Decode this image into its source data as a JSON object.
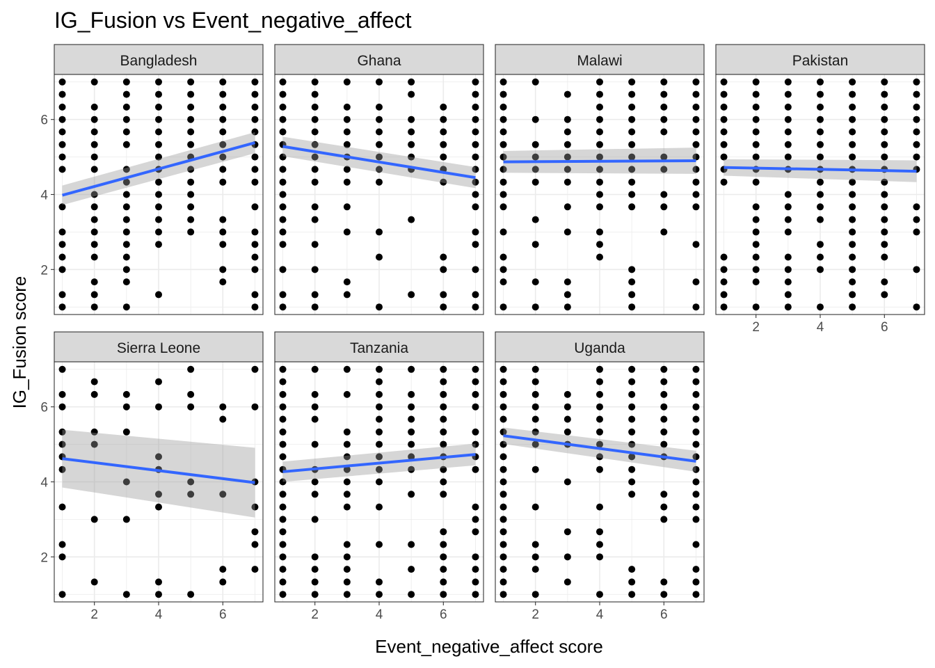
{
  "chart_data": {
    "type": "scatter",
    "title": "IG_Fusion vs Event_negative_affect",
    "xlabel": "Event_negative_affect score",
    "ylabel": "IG_Fusion score",
    "xlim": [
      0.75,
      7.25
    ],
    "ylim": [
      0.8,
      7.2
    ],
    "x_ticks": [
      2,
      4,
      6
    ],
    "y_ticks": [
      2,
      4,
      6
    ],
    "grid": true,
    "facet_layout": {
      "columns": 4,
      "rows": 2
    },
    "colors": {
      "points": "#000000",
      "fit_line": "#3366ff",
      "ci_band": "#999999",
      "strip_fill": "#d9d9d9",
      "grid": "#ebebeb"
    },
    "panels": [
      {
        "name": "Bangladesh",
        "fit": {
          "x": [
            1,
            7
          ],
          "y": [
            3.98,
            5.38
          ],
          "ci_low": [
            3.72,
            5.1
          ],
          "ci_high": [
            4.24,
            5.66
          ]
        },
        "columns": [
          {
            "x": 1,
            "y": [
              1,
              1.33,
              2,
              2.33,
              2.67,
              3,
              3.67,
              4.67,
              5,
              5.33,
              5.67,
              6,
              6.33,
              6.67,
              7
            ]
          },
          {
            "x": 2,
            "y": [
              1,
              1.33,
              1.67,
              2.33,
              2.67,
              3,
              3.33,
              3.67,
              4,
              4.67,
              5,
              5.33,
              5.67,
              6,
              6.33,
              7
            ]
          },
          {
            "x": 3,
            "y": [
              1,
              1.67,
              2,
              2.33,
              2.67,
              3,
              3.33,
              3.67,
              4,
              4.33,
              4.67,
              5.33,
              5.67,
              6,
              6.33,
              6.67,
              7
            ]
          },
          {
            "x": 4,
            "y": [
              1.33,
              2.67,
              3,
              3.33,
              3.67,
              4,
              4.33,
              4.67,
              5,
              5.33,
              5.67,
              6,
              6.33,
              6.67,
              7
            ]
          },
          {
            "x": 5,
            "y": [
              3,
              3.33,
              3.67,
              4,
              4.33,
              4.67,
              5,
              5.33,
              5.67,
              6,
              6.33,
              6.67,
              7
            ]
          },
          {
            "x": 6,
            "y": [
              1.67,
              2,
              2.67,
              3,
              3.33,
              4.33,
              4.67,
              5,
              5.33,
              5.67,
              6,
              6.33,
              6.67,
              7
            ]
          },
          {
            "x": 7,
            "y": [
              1,
              1.33,
              2,
              2.33,
              2.67,
              3,
              3.67,
              4.33,
              4.67,
              5,
              5.33,
              5.67,
              6,
              6.33,
              6.67,
              7
            ]
          }
        ]
      },
      {
        "name": "Ghana",
        "fit": {
          "x": [
            1,
            7
          ],
          "y": [
            5.28,
            4.45
          ],
          "ci_low": [
            5.02,
            4.17
          ],
          "ci_high": [
            5.54,
            4.73
          ]
        },
        "columns": [
          {
            "x": 1,
            "y": [
              1,
              1.33,
              2,
              2.67,
              3,
              3.33,
              3.67,
              4,
              4.33,
              4.67,
              5,
              5.33,
              5.67,
              6,
              6.33,
              6.67,
              7
            ]
          },
          {
            "x": 2,
            "y": [
              1,
              1.33,
              2,
              2.67,
              3.33,
              3.67,
              4.33,
              4.67,
              5,
              5.33,
              5.67,
              6,
              6.33,
              6.67,
              7
            ]
          },
          {
            "x": 3,
            "y": [
              1.33,
              1.67,
              3,
              3.67,
              4.33,
              4.67,
              5,
              5.33,
              5.67,
              6,
              6.33,
              7
            ]
          },
          {
            "x": 4,
            "y": [
              1,
              2.33,
              3,
              4.33,
              4.67,
              5,
              5.33,
              5.67,
              6,
              6.33,
              7
            ]
          },
          {
            "x": 5,
            "y": [
              1.33,
              3.33,
              4.67,
              5,
              5.33,
              5.67,
              6,
              6.67,
              7
            ]
          },
          {
            "x": 6,
            "y": [
              1,
              1.33,
              2,
              2.33,
              4.33,
              4.67,
              5,
              5.33,
              5.67,
              6,
              6.33
            ]
          },
          {
            "x": 7,
            "y": [
              1,
              1.33,
              2,
              2.67,
              3,
              3.67,
              4,
              4.33,
              4.67,
              5,
              5.33,
              5.67,
              6,
              6.33,
              6.67,
              7
            ]
          }
        ]
      },
      {
        "name": "Malawi",
        "fit": {
          "x": [
            1,
            7
          ],
          "y": [
            4.87,
            4.9
          ],
          "ci_low": [
            4.58,
            4.55
          ],
          "ci_high": [
            5.16,
            5.25
          ]
        },
        "columns": [
          {
            "x": 1,
            "y": [
              1,
              1.67,
              2,
              2.33,
              3,
              3.67,
              4,
              4.33,
              4.67,
              5,
              5.33,
              5.67,
              6,
              6.33,
              6.67,
              7
            ]
          },
          {
            "x": 2,
            "y": [
              1,
              1.67,
              2.67,
              3.33,
              4.33,
              4.67,
              5,
              5.33,
              6,
              7
            ]
          },
          {
            "x": 3,
            "y": [
              1,
              1.33,
              1.67,
              3,
              3.67,
              4.33,
              4.67,
              5,
              5.33,
              5.67,
              6,
              6.67
            ]
          },
          {
            "x": 4,
            "y": [
              2.33,
              2.67,
              3,
              3.67,
              4,
              4.33,
              4.67,
              5,
              5.33,
              5.67,
              6,
              6.33,
              6.67,
              7
            ]
          },
          {
            "x": 5,
            "y": [
              1,
              1.33,
              1.67,
              2,
              3.67,
              4,
              4.33,
              4.67,
              5,
              5.33,
              5.67,
              6,
              6.33,
              6.67,
              7
            ]
          },
          {
            "x": 6,
            "y": [
              3,
              3.67,
              4,
              4.67,
              5,
              5.67,
              6,
              6.33,
              6.67,
              7
            ]
          },
          {
            "x": 7,
            "y": [
              1,
              1.67,
              2.67,
              3.67,
              4,
              4.33,
              4.67,
              5,
              5.33,
              5.67,
              6,
              6.33,
              6.67,
              7
            ]
          }
        ]
      },
      {
        "name": "Pakistan",
        "fit": {
          "x": [
            1,
            7
          ],
          "y": [
            4.72,
            4.62
          ],
          "ci_low": [
            4.5,
            4.33
          ],
          "ci_high": [
            4.94,
            4.91
          ]
        },
        "columns": [
          {
            "x": 1,
            "y": [
              1,
              1.33,
              1.67,
              2,
              2.33,
              4.33,
              4.67,
              5,
              5.33,
              5.67,
              6,
              6.33,
              6.67,
              7
            ]
          },
          {
            "x": 2,
            "y": [
              1,
              1.67,
              2,
              2.33,
              2.67,
              3,
              3.33,
              3.67,
              4.33,
              4.67,
              5,
              5.33,
              5.67,
              6,
              6.33,
              6.67,
              7
            ]
          },
          {
            "x": 3,
            "y": [
              1,
              1.33,
              1.67,
              2,
              2.33,
              3,
              3.33,
              3.67,
              4,
              4.67,
              5,
              5.33,
              5.67,
              6,
              6.33,
              6.67,
              7
            ]
          },
          {
            "x": 4,
            "y": [
              1,
              2,
              2.33,
              2.67,
              3.33,
              3.67,
              4,
              4.33,
              4.67,
              5,
              5.33,
              5.67,
              6,
              6.33,
              6.67,
              7
            ]
          },
          {
            "x": 5,
            "y": [
              1,
              1.33,
              1.67,
              2,
              2.33,
              2.67,
              3,
              3.33,
              3.67,
              4,
              4.33,
              4.67,
              5,
              5.33,
              5.67,
              6,
              6.33,
              6.67,
              7
            ]
          },
          {
            "x": 6,
            "y": [
              1.33,
              1.67,
              2.33,
              2.67,
              3,
              3.33,
              3.67,
              4,
              4.33,
              4.67,
              5,
              5.33,
              5.67,
              6,
              6.33,
              6.67,
              7
            ]
          },
          {
            "x": 7,
            "y": [
              1,
              2,
              3,
              3.33,
              3.67,
              4.67,
              5,
              5.33,
              5.67,
              6,
              6.33,
              6.67,
              7
            ]
          }
        ]
      },
      {
        "name": "Sierra Leone",
        "fit": {
          "x": [
            1,
            7
          ],
          "y": [
            4.62,
            3.98
          ],
          "ci_low": [
            3.85,
            3.05
          ],
          "ci_high": [
            5.39,
            4.91
          ]
        },
        "columns": [
          {
            "x": 1,
            "y": [
              1,
              2,
              2.33,
              3.33,
              4.33,
              4.67,
              5,
              5.33,
              6,
              6.33,
              7
            ]
          },
          {
            "x": 2,
            "y": [
              1.33,
              3,
              5,
              5.33,
              6.33,
              6.67
            ]
          },
          {
            "x": 3,
            "y": [
              1,
              3,
              4,
              5.33,
              6,
              6.33
            ]
          },
          {
            "x": 4,
            "y": [
              1,
              1.33,
              3.33,
              3.67,
              4.33,
              4.67,
              6,
              6.67
            ]
          },
          {
            "x": 5,
            "y": [
              1,
              3.67,
              4,
              6,
              6.33,
              7
            ]
          },
          {
            "x": 6,
            "y": [
              1.33,
              1.67,
              3.67,
              5.67,
              6
            ]
          },
          {
            "x": 7,
            "y": [
              1.67,
              2.33,
              2.67,
              3.33,
              4,
              6,
              7
            ]
          }
        ]
      },
      {
        "name": "Tanzania",
        "fit": {
          "x": [
            1,
            7
          ],
          "y": [
            4.27,
            4.73
          ],
          "ci_low": [
            4.0,
            4.44
          ],
          "ci_high": [
            4.54,
            5.02
          ]
        },
        "columns": [
          {
            "x": 1,
            "y": [
              1,
              1.33,
              1.67,
              2,
              2.33,
              2.67,
              3,
              3.33,
              3.67,
              4,
              4.33,
              4.67,
              5,
              5.33,
              5.67,
              6,
              6.33,
              6.67,
              7
            ]
          },
          {
            "x": 2,
            "y": [
              1,
              1.33,
              1.67,
              2,
              3,
              3.67,
              4,
              4.33,
              5,
              5.67,
              6,
              6.33,
              7
            ]
          },
          {
            "x": 3,
            "y": [
              1,
              1.33,
              1.67,
              2,
              2.33,
              3.33,
              3.67,
              4,
              4.33,
              4.67,
              5,
              5.33,
              6.33,
              7
            ]
          },
          {
            "x": 4,
            "y": [
              1,
              1.33,
              2.33,
              3.33,
              4,
              4.33,
              4.67,
              5,
              5.33,
              5.67,
              6,
              6.33,
              6.67,
              7
            ]
          },
          {
            "x": 5,
            "y": [
              1,
              1.67,
              2.33,
              3.67,
              4.33,
              4.67,
              5,
              5.33,
              5.67,
              6,
              6.33,
              7
            ]
          },
          {
            "x": 6,
            "y": [
              1,
              1.33,
              1.67,
              2,
              2.33,
              2.67,
              3.67,
              4,
              4.33,
              4.67,
              5,
              5.33,
              5.67,
              6,
              6.33,
              6.67,
              7
            ]
          },
          {
            "x": 7,
            "y": [
              1,
              1.33,
              1.67,
              2,
              2.67,
              3,
              3.33,
              4.33,
              4.67,
              5,
              5.33,
              6,
              6.33,
              6.67,
              7
            ]
          }
        ]
      },
      {
        "name": "Uganda",
        "fit": {
          "x": [
            1,
            7
          ],
          "y": [
            5.23,
            4.55
          ],
          "ci_low": [
            5.01,
            4.27
          ],
          "ci_high": [
            5.45,
            4.83
          ]
        },
        "columns": [
          {
            "x": 1,
            "y": [
              1,
              1.33,
              1.67,
              2,
              2.33,
              2.67,
              3,
              3.33,
              3.67,
              4,
              4.33,
              4.67,
              5,
              5.33,
              5.67,
              6,
              6.33,
              6.67,
              7
            ]
          },
          {
            "x": 2,
            "y": [
              1,
              1.67,
              2,
              2.33,
              3.33,
              4.33,
              5,
              5.33,
              5.67,
              6,
              6.33,
              6.67,
              7
            ]
          },
          {
            "x": 3,
            "y": [
              1.33,
              2,
              2.67,
              4,
              5,
              5.33,
              5.67,
              6,
              6.33
            ]
          },
          {
            "x": 4,
            "y": [
              1,
              2,
              2.33,
              2.67,
              3.33,
              4.33,
              4.67,
              5,
              5.33,
              5.67,
              6,
              6.33,
              6.67,
              7
            ]
          },
          {
            "x": 5,
            "y": [
              1,
              1.33,
              1.67,
              3.67,
              4,
              4.33,
              4.67,
              5,
              5.33,
              5.67,
              6,
              6.33,
              6.67,
              7
            ]
          },
          {
            "x": 6,
            "y": [
              1,
              1.33,
              3,
              3.33,
              3.67,
              4.67,
              5,
              5.33,
              5.67,
              6,
              6.33,
              6.67,
              7
            ]
          },
          {
            "x": 7,
            "y": [
              1,
              1.33,
              1.67,
              2.33,
              3,
              3.33,
              3.67,
              4,
              4.33,
              4.67,
              5,
              5.33,
              5.67,
              6,
              6.33,
              6.67,
              7
            ]
          }
        ]
      }
    ]
  }
}
